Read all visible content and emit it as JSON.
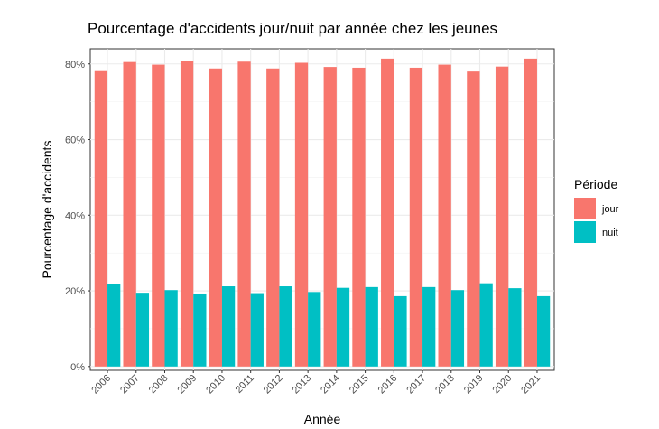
{
  "chart_data": {
    "type": "bar",
    "title": "Pourcentage d'accidents jour/nuit par année chez les jeunes",
    "xlabel": "Année",
    "ylabel": "Pourcentage d'accidents",
    "categories": [
      "2006",
      "2007",
      "2008",
      "2009",
      "2010",
      "2011",
      "2012",
      "2013",
      "2014",
      "2015",
      "2016",
      "2017",
      "2018",
      "2019",
      "2020",
      "2021"
    ],
    "series": [
      {
        "name": "jour",
        "color": "#F8766D",
        "values": [
          78.1,
          80.5,
          79.8,
          80.7,
          78.8,
          80.6,
          78.8,
          80.3,
          79.2,
          79.0,
          81.4,
          79.0,
          79.8,
          78.0,
          79.3,
          81.4
        ]
      },
      {
        "name": "nuit",
        "color": "#00BFC4",
        "values": [
          21.9,
          19.5,
          20.2,
          19.3,
          21.2,
          19.4,
          21.2,
          19.7,
          20.8,
          21.0,
          18.6,
          21.0,
          20.2,
          22.0,
          20.7,
          18.6
        ]
      }
    ],
    "ylim": [
      -1,
      84
    ],
    "yticks": [
      0,
      20,
      40,
      60,
      80
    ],
    "ytick_labels": [
      "0%",
      "20%",
      "40%",
      "60%",
      "80%"
    ],
    "grid": true,
    "legend": {
      "title": "Période",
      "position": "right"
    }
  }
}
